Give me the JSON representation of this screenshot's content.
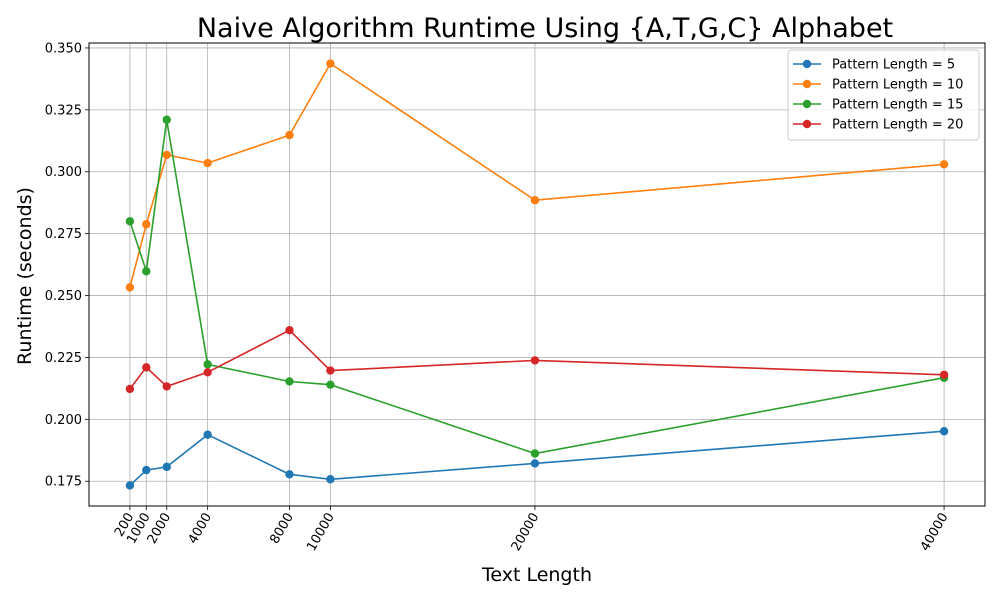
{
  "chart_data": {
    "type": "line",
    "title": "Naive Algorithm Runtime Using {A,T,G,C} Alphabet",
    "xlabel": "Text Length",
    "ylabel": "Runtime (seconds)",
    "x": [
      200,
      1000,
      2000,
      4000,
      8000,
      10000,
      20000,
      40000
    ],
    "x_tick_labels": [
      "200",
      "1000",
      "2000",
      "4000",
      "8000",
      "10000",
      "20000",
      "40000"
    ],
    "y_tick_values": [
      0.175,
      0.2,
      0.225,
      0.25,
      0.275,
      0.3,
      0.325,
      0.35
    ],
    "y_tick_labels": [
      "0.175",
      "0.200",
      "0.225",
      "0.250",
      "0.275",
      "0.300",
      "0.325",
      "0.350"
    ],
    "xlim": [
      -1800,
      42000
    ],
    "ylim": [
      0.165,
      0.352
    ],
    "grid": true,
    "legend_position": "top-right",
    "series": [
      {
        "name": "Pattern Length = 5",
        "color": "#1f77b4",
        "values": [
          0.1733,
          0.1795,
          0.1808,
          0.1938,
          0.1778,
          0.1758,
          0.1822,
          0.1952
        ]
      },
      {
        "name": "Pattern Length = 10",
        "color": "#ff7f0e",
        "values": [
          0.2533,
          0.2788,
          0.3068,
          0.3035,
          0.3148,
          0.3437,
          0.2885,
          0.303
        ]
      },
      {
        "name": "Pattern Length = 15",
        "color": "#2ca02c",
        "values": [
          0.28,
          0.2598,
          0.321,
          0.2222,
          0.2153,
          0.214,
          0.1862,
          0.2168
        ]
      },
      {
        "name": "Pattern Length = 20",
        "color": "#d62728",
        "values": [
          0.2123,
          0.221,
          0.2133,
          0.219,
          0.236,
          0.2197,
          0.2238,
          0.218
        ]
      }
    ]
  }
}
